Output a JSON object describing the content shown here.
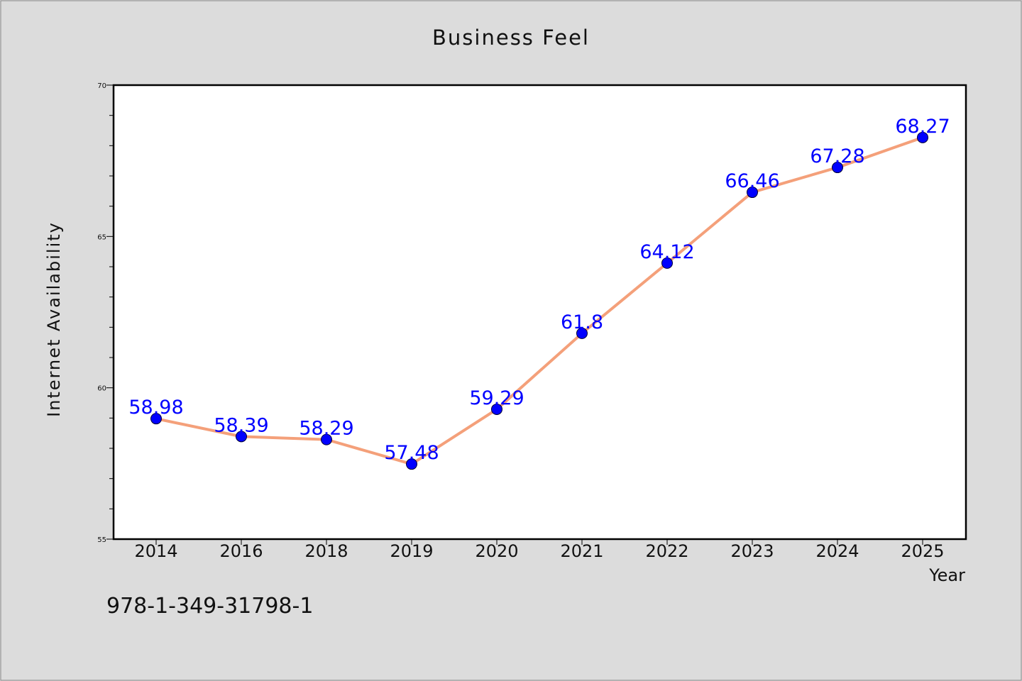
{
  "chart_data": {
    "type": "line",
    "title": "Business Feel",
    "xlabel": "Year",
    "ylabel": "Internet Availability",
    "categories": [
      "2014",
      "2016",
      "2018",
      "2019",
      "2020",
      "2021",
      "2022",
      "2023",
      "2024",
      "2025"
    ],
    "series": [
      {
        "values": [
          58.98,
          58.39,
          58.29,
          57.48,
          59.29,
          61.8,
          64.12,
          66.46,
          67.28,
          68.27
        ]
      }
    ],
    "data_labels": [
      "58.98",
      "58.39",
      "58.29",
      "57.48",
      "59.29",
      "61.8",
      "64.12",
      "66.46",
      "67.28",
      "68.27"
    ],
    "ylim": [
      55,
      70
    ],
    "yticks": [
      "55",
      "60",
      "65",
      "70"
    ],
    "grid": false,
    "legend": "none",
    "colors": {
      "line": "#f4a07a",
      "marker": "#0000ff",
      "data_label": "#0000ff",
      "background": "#dcdcdc",
      "plot_area": "#ffffff"
    }
  },
  "footnote": "978-1-349-31798-1"
}
